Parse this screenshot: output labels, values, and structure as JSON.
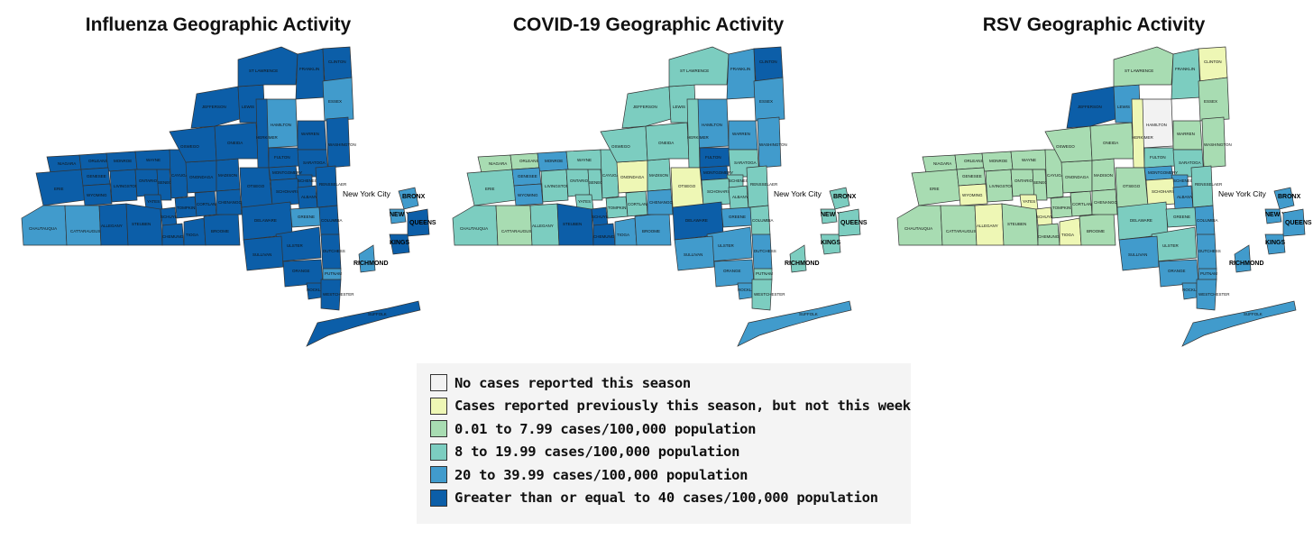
{
  "maps": [
    {
      "title": "Influenza Geographic Activity",
      "palette": "flu"
    },
    {
      "title": "COVID-19 Geographic Activity",
      "palette": "covid"
    },
    {
      "title": "RSV Geographic Activity",
      "palette": "rsv"
    }
  ],
  "nyc_label": "New York City",
  "county_labels": {
    "niagara": "NIAGARA",
    "orleans": "ORLEANS",
    "erie": "ERIE",
    "genesee": "GENESEE",
    "monroe": "MONROE",
    "wayne": "WAYNE",
    "wyoming": "WYOMING",
    "livingston": "LIVINGSTON",
    "ontario": "ONTARIO",
    "chautauqua": "CHAUTAUQUA",
    "cattaraugus": "CATTARAUGUS",
    "allegany": "ALLEGANY",
    "steuben": "STEUBEN",
    "chemung": "CHEMUNG",
    "tioga": "TIOGA",
    "broome": "BROOME",
    "yates": "YATES",
    "schuyler": "SCHUYLER",
    "seneca": "SENECA",
    "cayuga": "CAYUGA",
    "tompkins": "TOMPKINS",
    "cortland": "CORTLAND",
    "onondaga": "ONONDAGA",
    "oswego": "OSWEGO",
    "madison": "MADISON",
    "chenango": "CHENANGO",
    "oneida": "ONEIDA",
    "lewis": "LEWIS",
    "jefferson": "JEFFERSON",
    "stlawrence": "ST LAWRENCE",
    "franklin": "FRANKLIN",
    "clinton": "CLINTON",
    "essex": "ESSEX",
    "hamilton": "HAMILTON",
    "herkimer": "HERKIMER",
    "fulton": "FULTON",
    "montgomery": "MONTGOMERY",
    "otsego": "OTSEGO",
    "delaware": "DELAWARE",
    "schoharie": "SCHOHARIE",
    "schenectady": "SCHENECTADY",
    "albany": "ALBANY",
    "saratoga": "SARATOGA",
    "warren": "WARREN",
    "washington": "WASHINGTON",
    "rensselaer": "RENSSELAER",
    "greene": "GREENE",
    "columbia": "COLUMBIA",
    "ulster": "ULSTER",
    "dutchess": "DUTCHESS",
    "sullivan": "SULLIVAN",
    "orange": "ORANGE",
    "putnam": "PUTNAM",
    "rockland": "ROCKLAND",
    "westchester": "WESTCHESTER",
    "suffolk": "SUFFOLK",
    "bronx": "BRONX",
    "newyork": "NEW YORK",
    "queens": "QUEENS",
    "kings": "KINGS",
    "richmond": "RICHMOND"
  },
  "legend": [
    {
      "label": "No cases reported this season",
      "color": "#f2f2f2"
    },
    {
      "label": "Cases reported previously this season, but not this week",
      "color": "#eef7b5"
    },
    {
      "label": "0.01 to 7.99 cases/100,000 population",
      "color": "#a8dcb2"
    },
    {
      "label": "8 to 19.99 cases/100,000 population",
      "color": "#7ccdc0"
    },
    {
      "label": "20 to 39.99 cases/100,000 population",
      "color": "#419bcc"
    },
    {
      "label": "Greater than or equal to 40 cases/100,000 population",
      "color": "#0c5ea8"
    }
  ],
  "map_data": {
    "flu": {
      "default": 5,
      "overrides": {
        "chautauqua": 4,
        "cattaraugus": 4,
        "hamilton": 4,
        "essex": 4,
        "greene": 4,
        "bronx": 4,
        "newyork": 4,
        "richmond": 4,
        "putnam": 4,
        "suffolk": 5
      }
    },
    "covid": {
      "default": 3,
      "overrides": {
        "clinton": 5,
        "franklin": 4,
        "essex": 4,
        "hamilton": 4,
        "warren": 4,
        "washington": 4,
        "fulton": 5,
        "montgomery": 5,
        "otsego": 1,
        "delaware": 5,
        "chemung": 5,
        "steuben": 5,
        "schuyler": 5,
        "tioga": 4,
        "broome": 4,
        "ulster": 4,
        "dutchess": 4,
        "sullivan": 4,
        "orange": 4,
        "rockland": 4,
        "westchester": 3,
        "suffolk": 4,
        "putnam": 3,
        "greene": 4,
        "columbia": 3,
        "albany": 3,
        "schenectady": 3,
        "saratoga": 3,
        "rensselaer": 3,
        "oneida": 3,
        "onondaga": 1,
        "monroe": 4,
        "genesee": 4,
        "wyoming": 4,
        "livingston": 3,
        "ontario": 3,
        "wayne": 3,
        "erie": 3,
        "niagara": 2,
        "orleans": 2,
        "chautauqua": 3,
        "cattaraugus": 2,
        "allegany": 3,
        "yates": 3,
        "seneca": 3,
        "cayuga": 3,
        "tompkins": 3,
        "cortland": 3,
        "chenango": 4,
        "madison": 3,
        "oswego": 3,
        "jefferson": 3,
        "lewis": 3,
        "stlawrence": 3,
        "herkimer": 3,
        "schoharie": 3,
        "bronx": 3,
        "newyork": 3,
        "queens": 3,
        "kings": 3,
        "richmond": 3
      }
    },
    "rsv": {
      "default": 2,
      "overrides": {
        "clinton": 1,
        "franklin": 3,
        "hamilton": 0,
        "herkimer": 1,
        "jefferson": 5,
        "lewis": 4,
        "essex": 2,
        "fulton": 3,
        "montgomery": 4,
        "schenectady": 4,
        "saratoga": 3,
        "schoharie": 1,
        "albany": 4,
        "rensselaer": 3,
        "greene": 3,
        "columbia": 4,
        "ulster": 3,
        "dutchess": 4,
        "sullivan": 4,
        "orange": 4,
        "putnam": 4,
        "rockland": 4,
        "westchester": 4,
        "suffolk": 4,
        "yates": 1,
        "schuyler": 1,
        "tioga": 1,
        "wyoming": 1,
        "allegany": 1,
        "bronx": 4,
        "newyork": 4,
        "queens": 4,
        "kings": 4,
        "richmond": 4,
        "delaware": 3,
        "otsego": 2,
        "broome": 2,
        "chemung": 2,
        "steuben": 2,
        "cayuga": 2,
        "tompkins": 2,
        "cortland": 2,
        "chenango": 2,
        "madison": 2,
        "oneida": 2,
        "onondaga": 2,
        "oswego": 2,
        "stlawrence": 2,
        "washington": 2,
        "warren": 2
      }
    }
  }
}
